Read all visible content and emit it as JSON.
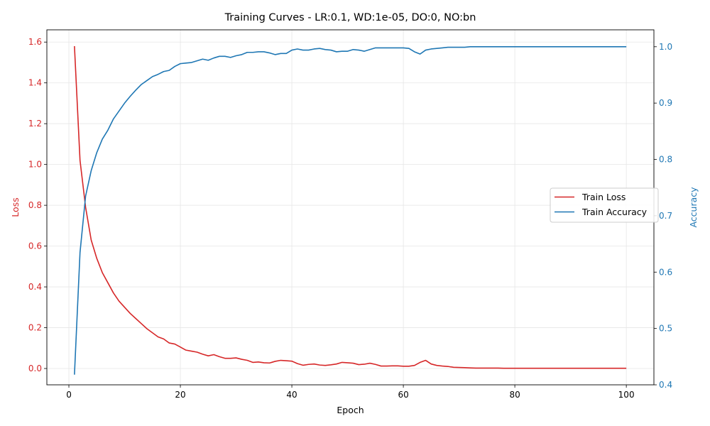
{
  "chart_data": {
    "type": "line",
    "title": "Training Curves - LR:0.1, WD:1e-05, DO:0, NO:bn",
    "xlabel": "Epoch",
    "ylabel_left": "Loss",
    "ylabel_right": "Accuracy",
    "xlim": [
      -3.95,
      104.95
    ],
    "ylim_left": [
      -0.08,
      1.66
    ],
    "ylim_right": [
      0.4,
      1.03
    ],
    "x_ticks": [
      0,
      20,
      40,
      60,
      80,
      100
    ],
    "x_tick_labels": [
      "0",
      "20",
      "40",
      "60",
      "80",
      "100"
    ],
    "y_left_ticks": [
      0.0,
      0.2,
      0.4,
      0.6,
      0.8,
      1.0,
      1.2,
      1.4,
      1.6
    ],
    "y_left_tick_labels": [
      "0.0",
      "0.2",
      "0.4",
      "0.6",
      "0.8",
      "1.0",
      "1.2",
      "1.4",
      "1.6"
    ],
    "y_right_ticks": [
      0.4,
      0.5,
      0.6,
      0.7,
      0.8,
      0.9,
      1.0
    ],
    "y_right_tick_labels": [
      "0.4",
      "0.5",
      "0.6",
      "0.7",
      "0.8",
      "0.9",
      "1.0"
    ],
    "grid": true,
    "legend_position": "center-right",
    "colors": {
      "loss": "#d62728",
      "accuracy": "#1f77b4",
      "grid": "#e6e6e6",
      "axis": "#000000"
    },
    "series": [
      {
        "name": "Train Loss",
        "axis": "left",
        "x": [
          1,
          2,
          3,
          4,
          5,
          6,
          7,
          8,
          9,
          10,
          11,
          12,
          13,
          14,
          15,
          16,
          17,
          18,
          19,
          20,
          21,
          22,
          23,
          24,
          25,
          26,
          27,
          28,
          29,
          30,
          31,
          32,
          33,
          34,
          35,
          36,
          37,
          38,
          39,
          40,
          41,
          42,
          43,
          44,
          45,
          46,
          47,
          48,
          49,
          50,
          51,
          52,
          53,
          54,
          55,
          56,
          57,
          58,
          59,
          60,
          61,
          62,
          63,
          64,
          65,
          66,
          67,
          68,
          69,
          70,
          71,
          72,
          73,
          74,
          75,
          76,
          77,
          78,
          79,
          80,
          81,
          82,
          83,
          84,
          85,
          86,
          87,
          88,
          89,
          90,
          91,
          92,
          93,
          94,
          95,
          96,
          97,
          98,
          99,
          100
        ],
        "values": [
          1.58,
          1.02,
          0.79,
          0.63,
          0.54,
          0.47,
          0.42,
          0.37,
          0.33,
          0.3,
          0.27,
          0.245,
          0.22,
          0.195,
          0.175,
          0.155,
          0.145,
          0.125,
          0.12,
          0.105,
          0.09,
          0.085,
          0.08,
          0.07,
          0.062,
          0.068,
          0.058,
          0.05,
          0.05,
          0.052,
          0.045,
          0.04,
          0.03,
          0.032,
          0.028,
          0.027,
          0.035,
          0.04,
          0.038,
          0.036,
          0.024,
          0.016,
          0.02,
          0.022,
          0.017,
          0.015,
          0.018,
          0.022,
          0.03,
          0.028,
          0.026,
          0.019,
          0.021,
          0.026,
          0.02,
          0.012,
          0.012,
          0.013,
          0.013,
          0.011,
          0.011,
          0.015,
          0.03,
          0.04,
          0.022,
          0.015,
          0.012,
          0.01,
          0.006,
          0.005,
          0.004,
          0.003,
          0.002,
          0.002,
          0.002,
          0.002,
          0.002,
          0.001,
          0.001,
          0.001,
          0.001,
          0.001,
          0.001,
          0.001,
          0.001,
          0.001,
          0.001,
          0.001,
          0.001,
          0.001,
          0.001,
          0.001,
          0.001,
          0.001,
          0.001,
          0.001,
          0.001,
          0.001,
          0.001,
          0.001
        ]
      },
      {
        "name": "Train Accuracy",
        "axis": "right",
        "x": [
          1,
          2,
          3,
          4,
          5,
          6,
          7,
          8,
          9,
          10,
          11,
          12,
          13,
          14,
          15,
          16,
          17,
          18,
          19,
          20,
          21,
          22,
          23,
          24,
          25,
          26,
          27,
          28,
          29,
          30,
          31,
          32,
          33,
          34,
          35,
          36,
          37,
          38,
          39,
          40,
          41,
          42,
          43,
          44,
          45,
          46,
          47,
          48,
          49,
          50,
          51,
          52,
          53,
          54,
          55,
          56,
          57,
          58,
          59,
          60,
          61,
          62,
          63,
          64,
          65,
          66,
          67,
          68,
          69,
          70,
          71,
          72,
          73,
          74,
          75,
          76,
          77,
          78,
          79,
          80,
          81,
          82,
          83,
          84,
          85,
          86,
          87,
          88,
          89,
          90,
          91,
          92,
          93,
          94,
          95,
          96,
          97,
          98,
          99,
          100
        ],
        "values": [
          0.418,
          0.635,
          0.735,
          0.78,
          0.812,
          0.836,
          0.852,
          0.872,
          0.886,
          0.9,
          0.912,
          0.923,
          0.933,
          0.94,
          0.947,
          0.951,
          0.956,
          0.958,
          0.965,
          0.97,
          0.971,
          0.972,
          0.975,
          0.978,
          0.976,
          0.98,
          0.983,
          0.983,
          0.981,
          0.984,
          0.986,
          0.99,
          0.99,
          0.991,
          0.991,
          0.989,
          0.986,
          0.988,
          0.988,
          0.994,
          0.996,
          0.994,
          0.994,
          0.996,
          0.997,
          0.995,
          0.994,
          0.991,
          0.992,
          0.992,
          0.995,
          0.994,
          0.992,
          0.995,
          0.998,
          0.998,
          0.998,
          0.998,
          0.998,
          0.998,
          0.997,
          0.991,
          0.987,
          0.994,
          0.996,
          0.997,
          0.998,
          0.999,
          0.999,
          0.999,
          0.999,
          1.0,
          1.0,
          1.0,
          1.0,
          1.0,
          1.0,
          1.0,
          1.0,
          1.0,
          1.0,
          1.0,
          1.0,
          1.0,
          1.0,
          1.0,
          1.0,
          1.0,
          1.0,
          1.0,
          1.0,
          1.0,
          1.0,
          1.0,
          1.0,
          1.0,
          1.0,
          1.0,
          1.0,
          1.0
        ]
      }
    ]
  }
}
